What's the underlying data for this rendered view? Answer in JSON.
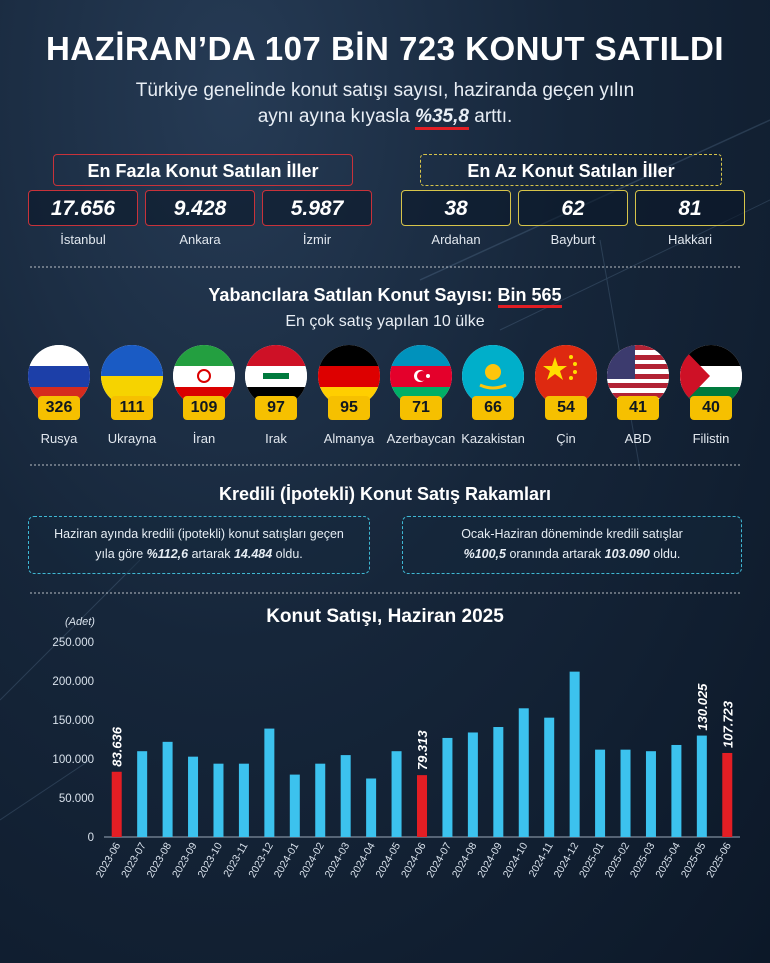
{
  "header": {
    "title": "HAZİRAN’DA 107 BİN 723 KONUT SATILDI",
    "subtitle_line1": "Türkiye genelinde konut satışı sayısı, haziranda geçen yılın",
    "subtitle_line2_pre": "aynı ayına kıyasla ",
    "subtitle_highlight": "%35,8",
    "subtitle_line2_post": " arttı."
  },
  "most_sold": {
    "title": "En Fazla Konut Satılan İller",
    "items": [
      {
        "value": "17.656",
        "city": "İstanbul"
      },
      {
        "value": "9.428",
        "city": "Ankara"
      },
      {
        "value": "5.987",
        "city": "İzmir"
      }
    ]
  },
  "least_sold": {
    "title": "En Az Konut Satılan İller",
    "items": [
      {
        "value": "38",
        "city": "Ardahan"
      },
      {
        "value": "62",
        "city": "Bayburt"
      },
      {
        "value": "81",
        "city": "Hakkari"
      }
    ]
  },
  "foreign": {
    "title_pre": "Yabancılara Satılan Konut Sayısı: ",
    "title_value": "Bin 565",
    "subtitle": "En çok satış yapılan 10 ülke",
    "countries": [
      {
        "name": "Rusya",
        "count": "326",
        "flag": "russia-flag-icon"
      },
      {
        "name": "Ukrayna",
        "count": "111",
        "flag": "ukraine-flag-icon"
      },
      {
        "name": "İran",
        "count": "109",
        "flag": "iran-flag-icon"
      },
      {
        "name": "Irak",
        "count": "97",
        "flag": "iraq-flag-icon"
      },
      {
        "name": "Almanya",
        "count": "95",
        "flag": "germany-flag-icon"
      },
      {
        "name": "Azerbaycan",
        "count": "71",
        "flag": "azerbaijan-flag-icon"
      },
      {
        "name": "Kazakistan",
        "count": "66",
        "flag": "kazakhstan-flag-icon"
      },
      {
        "name": "Çin",
        "count": "54",
        "flag": "china-flag-icon"
      },
      {
        "name": "ABD",
        "count": "41",
        "flag": "usa-flag-icon"
      },
      {
        "name": "Filistin",
        "count": "40",
        "flag": "palestine-flag-icon"
      }
    ]
  },
  "credit": {
    "title": "Kredili (İpotekli) Konut Satış Rakamları",
    "box1_line1": "Haziran ayında kredili (ipotekli) konut satışları geçen",
    "box1_pre": "yıla göre ",
    "box1_pct": "%112,6",
    "box1_mid": " artarak ",
    "box1_val": "14.484",
    "box1_post": " oldu.",
    "box2_line1": "Ocak-Haziran döneminde kredili satışlar",
    "box2_pct": "%100,5",
    "box2_mid": " oranında artarak ",
    "box2_val": "103.090",
    "box2_post": " oldu."
  },
  "colors": {
    "bar": "#3cc2ee",
    "highlight": "#e31e24",
    "accent_red": "#e31e24",
    "accent_yellow": "#f6c000"
  },
  "chart_data": {
    "type": "bar",
    "title": "Konut Satışı, Haziran 2025",
    "ylabel": "(Adet)",
    "ylim": [
      0,
      250000
    ],
    "yticks": [
      "0",
      "50.000",
      "100.000",
      "150.000",
      "200.000",
      "250.000"
    ],
    "categories": [
      "2023-06",
      "2023-07",
      "2023-08",
      "2023-09",
      "2023-10",
      "2023-11",
      "2023-12",
      "2024-01",
      "2024-02",
      "2024-03",
      "2024-04",
      "2024-05",
      "2024-06",
      "2024-07",
      "2024-08",
      "2024-09",
      "2024-10",
      "2024-11",
      "2024-12",
      "2025-01",
      "2025-02",
      "2025-03",
      "2025-04",
      "2025-05",
      "2025-06"
    ],
    "values": [
      83636,
      110000,
      122000,
      103000,
      94000,
      94000,
      139000,
      80000,
      94000,
      105000,
      75000,
      110000,
      79313,
      127000,
      134000,
      141000,
      165000,
      153000,
      212000,
      112000,
      112000,
      110000,
      118000,
      130025,
      107723
    ],
    "highlighted": [
      0,
      12,
      24
    ],
    "data_labels": {
      "0": "83.636",
      "12": "79.313",
      "23": "130.025",
      "24": "107.723"
    },
    "grid": false
  }
}
